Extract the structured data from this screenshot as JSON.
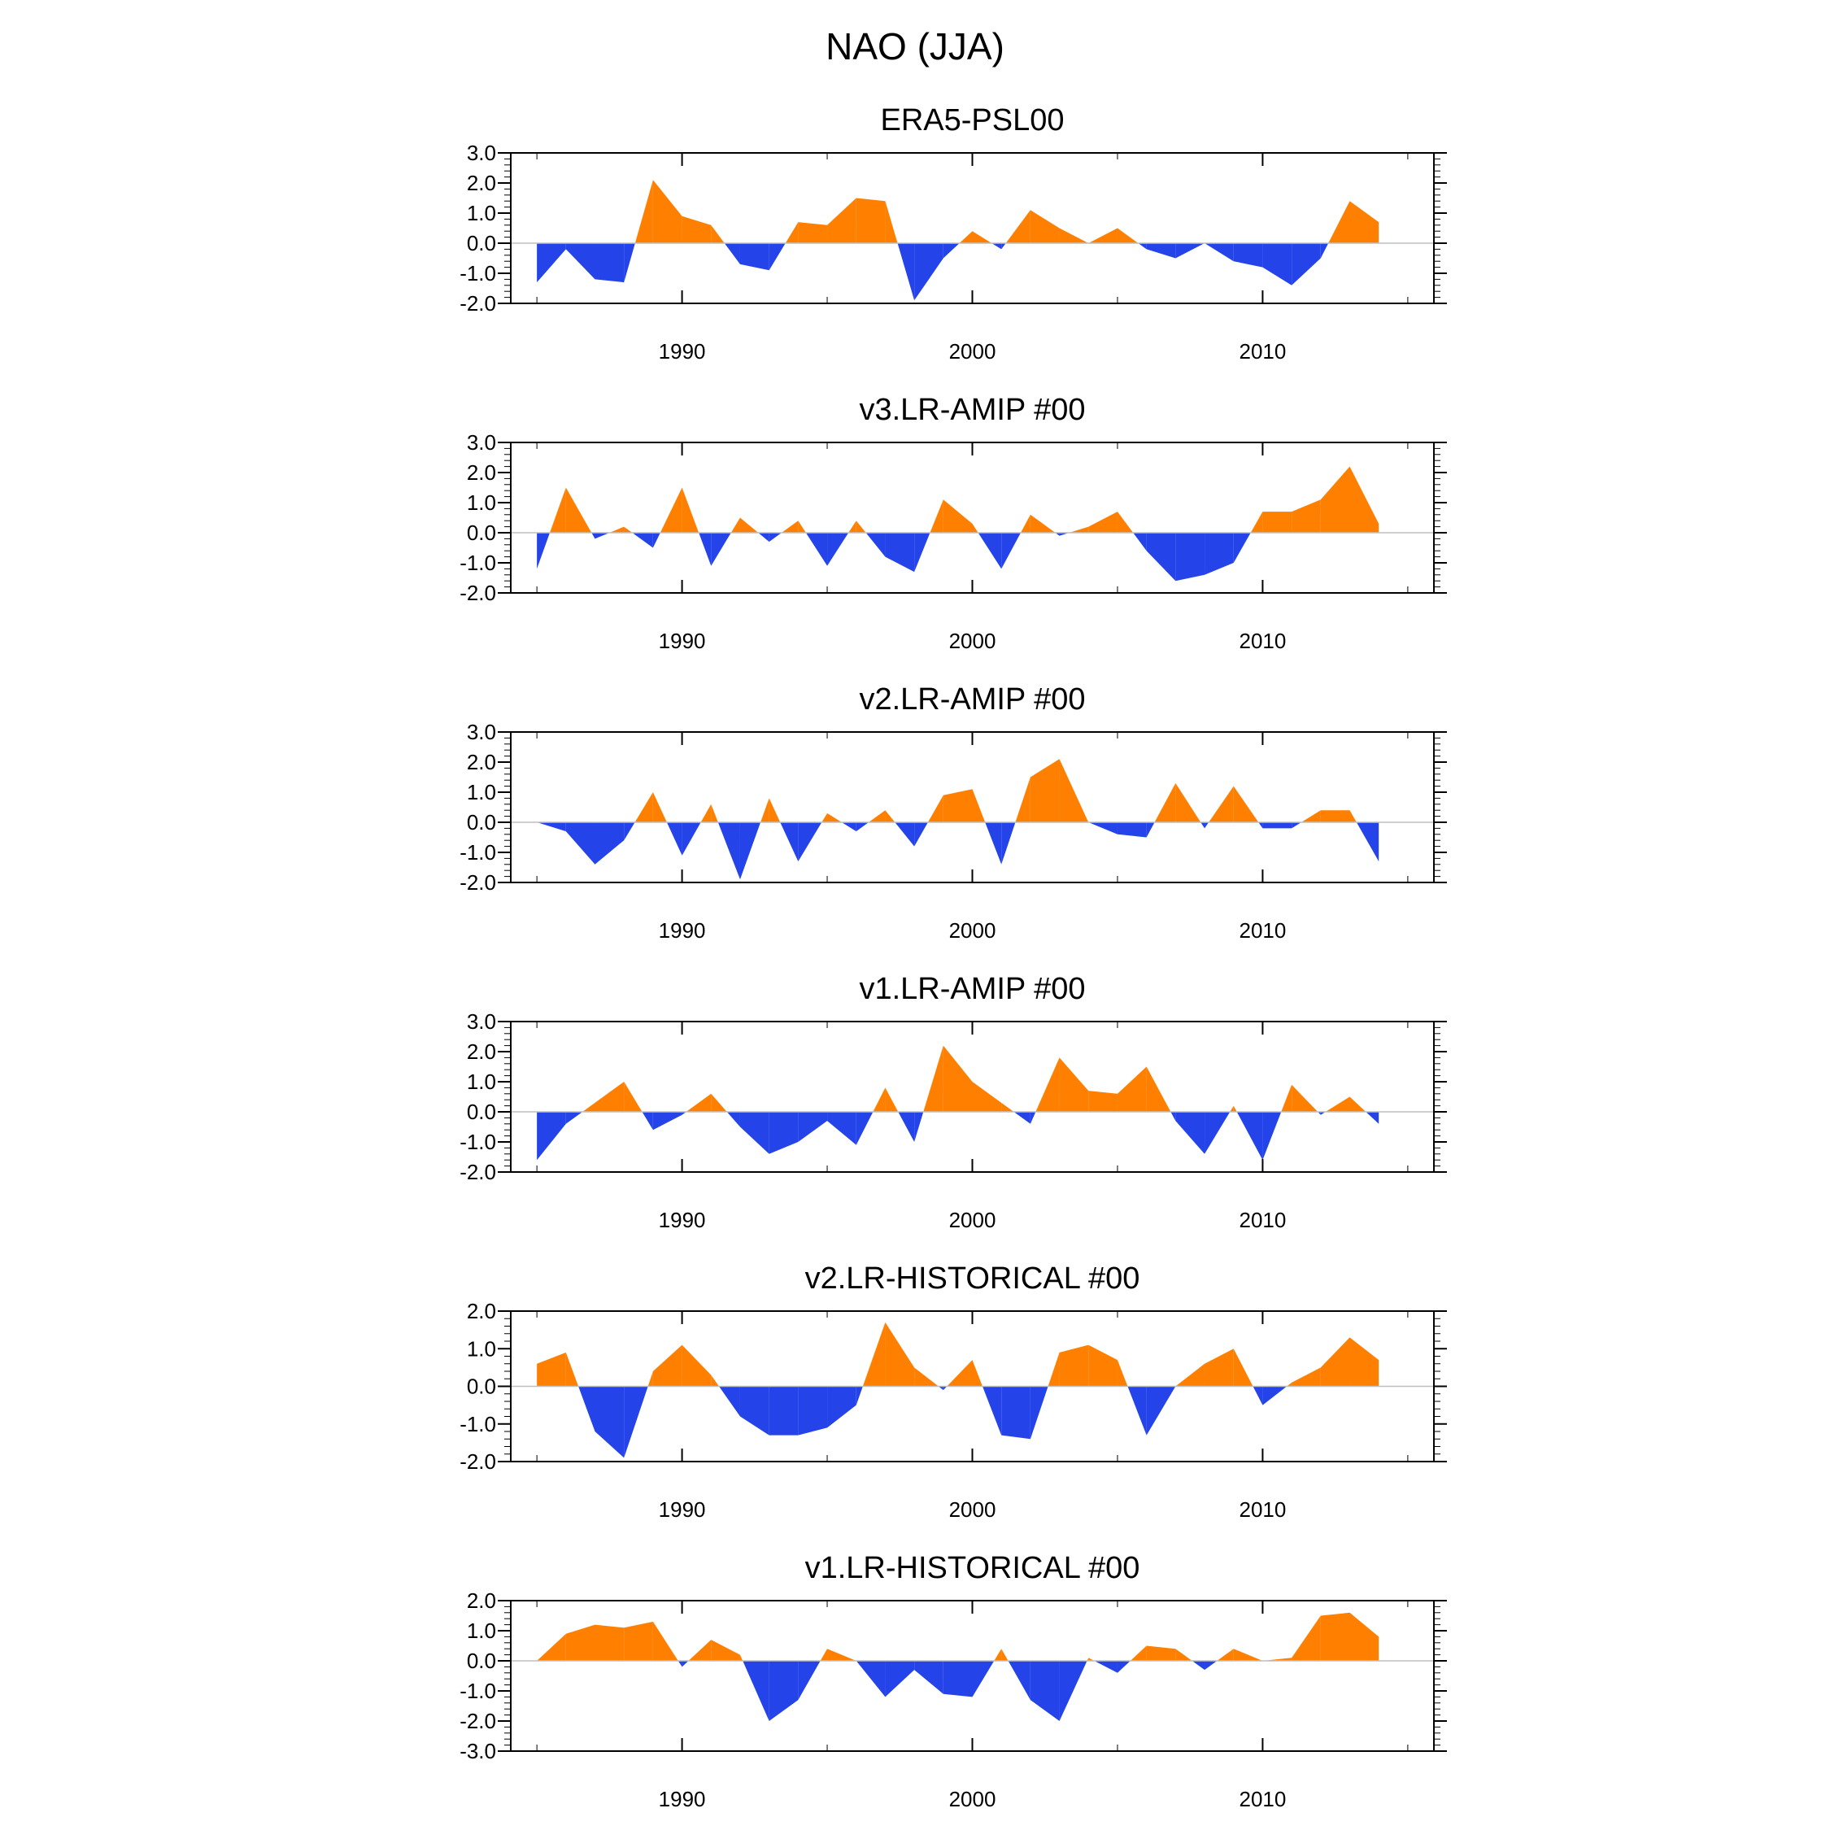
{
  "figure_title": "NAO (JJA)",
  "colors": {
    "positive": "#ff8000",
    "negative": "#2444ea",
    "axis": "#000000",
    "zero_line": "#bfbfbf"
  },
  "chart_data": [
    {
      "type": "area",
      "title": "ERA5-PSL00",
      "x": [
        1985,
        1986,
        1987,
        1988,
        1989,
        1990,
        1991,
        1992,
        1993,
        1994,
        1995,
        1996,
        1997,
        1998,
        1999,
        2000,
        2001,
        2002,
        2003,
        2004,
        2005,
        2006,
        2007,
        2008,
        2009,
        2010,
        2011,
        2012,
        2013,
        2014
      ],
      "values": [
        -1.3,
        -0.2,
        -1.2,
        -1.3,
        2.1,
        0.9,
        0.6,
        -0.7,
        -0.9,
        0.7,
        0.6,
        1.5,
        1.4,
        -1.9,
        -0.5,
        0.4,
        -0.2,
        1.1,
        0.5,
        0.0,
        0.5,
        -0.2,
        -0.5,
        0.0,
        -0.6,
        -0.8,
        -1.4,
        -0.5,
        1.4,
        0.7
      ],
      "xlim": [
        1984.1,
        2015.9
      ],
      "ylim": [
        -2.0,
        3.0
      ],
      "xticks": [
        "1990",
        "2000",
        "2010"
      ],
      "yticks": [
        "3.0",
        "2.0",
        "1.0",
        "0.0",
        "-1.0",
        "-2.0"
      ]
    },
    {
      "type": "area",
      "title": "v3.LR-AMIP  #00",
      "x": [
        1985,
        1986,
        1987,
        1988,
        1989,
        1990,
        1991,
        1992,
        1993,
        1994,
        1995,
        1996,
        1997,
        1998,
        1999,
        2000,
        2001,
        2002,
        2003,
        2004,
        2005,
        2006,
        2007,
        2008,
        2009,
        2010,
        2011,
        2012,
        2013,
        2014
      ],
      "values": [
        -1.2,
        1.5,
        -0.2,
        0.2,
        -0.5,
        1.5,
        -1.1,
        0.5,
        -0.3,
        0.4,
        -1.1,
        0.4,
        -0.8,
        -1.3,
        1.1,
        0.3,
        -1.2,
        0.6,
        -0.1,
        0.2,
        0.7,
        -0.6,
        -1.6,
        -1.4,
        -1.0,
        0.7,
        0.7,
        1.1,
        2.2,
        0.3
      ],
      "xlim": [
        1984.1,
        2015.9
      ],
      "ylim": [
        -2.0,
        3.0
      ],
      "xticks": [
        "1990",
        "2000",
        "2010"
      ],
      "yticks": [
        "3.0",
        "2.0",
        "1.0",
        "0.0",
        "-1.0",
        "-2.0"
      ]
    },
    {
      "type": "area",
      "title": "v2.LR-AMIP  #00",
      "x": [
        1985,
        1986,
        1987,
        1988,
        1989,
        1990,
        1991,
        1992,
        1993,
        1994,
        1995,
        1996,
        1997,
        1998,
        1999,
        2000,
        2001,
        2002,
        2003,
        2004,
        2005,
        2006,
        2007,
        2008,
        2009,
        2010,
        2011,
        2012,
        2013,
        2014
      ],
      "values": [
        0.0,
        -0.3,
        -1.4,
        -0.6,
        1.0,
        -1.1,
        0.6,
        -1.9,
        0.8,
        -1.3,
        0.3,
        -0.3,
        0.4,
        -0.8,
        0.9,
        1.1,
        -1.4,
        1.5,
        2.1,
        0.0,
        -0.4,
        -0.5,
        1.3,
        -0.2,
        1.2,
        -0.2,
        -0.2,
        0.4,
        0.4,
        -1.3
      ],
      "xlim": [
        1984.1,
        2015.9
      ],
      "ylim": [
        -2.0,
        3.0
      ],
      "xticks": [
        "1990",
        "2000",
        "2010"
      ],
      "yticks": [
        "3.0",
        "2.0",
        "1.0",
        "0.0",
        "-1.0",
        "-2.0"
      ]
    },
    {
      "type": "area",
      "title": "v1.LR-AMIP  #00",
      "x": [
        1985,
        1986,
        1987,
        1988,
        1989,
        1990,
        1991,
        1992,
        1993,
        1994,
        1995,
        1996,
        1997,
        1998,
        1999,
        2000,
        2001,
        2002,
        2003,
        2004,
        2005,
        2006,
        2007,
        2008,
        2009,
        2010,
        2011,
        2012,
        2013,
        2014
      ],
      "values": [
        -1.6,
        -0.4,
        0.3,
        1.0,
        -0.6,
        -0.1,
        0.6,
        -0.5,
        -1.4,
        -1.0,
        -0.3,
        -1.1,
        0.8,
        -1.0,
        2.2,
        1.0,
        0.3,
        -0.4,
        1.8,
        0.7,
        0.6,
        1.5,
        -0.3,
        -1.4,
        0.2,
        -1.6,
        0.9,
        -0.1,
        0.5,
        -0.4
      ],
      "xlim": [
        1984.1,
        2015.9
      ],
      "ylim": [
        -2.0,
        3.0
      ],
      "xticks": [
        "1990",
        "2000",
        "2010"
      ],
      "yticks": [
        "3.0",
        "2.0",
        "1.0",
        "0.0",
        "-1.0",
        "-2.0"
      ]
    },
    {
      "type": "area",
      "title": "v2.LR-HISTORICAL  #00",
      "x": [
        1985,
        1986,
        1987,
        1988,
        1989,
        1990,
        1991,
        1992,
        1993,
        1994,
        1995,
        1996,
        1997,
        1998,
        1999,
        2000,
        2001,
        2002,
        2003,
        2004,
        2005,
        2006,
        2007,
        2008,
        2009,
        2010,
        2011,
        2012,
        2013,
        2014
      ],
      "values": [
        0.6,
        0.9,
        -1.2,
        -1.9,
        0.4,
        1.1,
        0.3,
        -0.8,
        -1.3,
        -1.3,
        -1.1,
        -0.5,
        1.7,
        0.5,
        -0.1,
        0.7,
        -1.3,
        -1.4,
        0.9,
        1.1,
        0.7,
        -1.3,
        0.0,
        0.6,
        1.0,
        -0.5,
        0.1,
        0.5,
        1.3,
        0.7
      ],
      "xlim": [
        1984.1,
        2015.9
      ],
      "ylim": [
        -2.0,
        2.0
      ],
      "xticks": [
        "1990",
        "2000",
        "2010"
      ],
      "yticks": [
        "2.0",
        "1.0",
        "0.0",
        "-1.0",
        "-2.0"
      ]
    },
    {
      "type": "area",
      "title": "v1.LR-HISTORICAL  #00",
      "x": [
        1985,
        1986,
        1987,
        1988,
        1989,
        1990,
        1991,
        1992,
        1993,
        1994,
        1995,
        1996,
        1997,
        1998,
        1999,
        2000,
        2001,
        2002,
        2003,
        2004,
        2005,
        2006,
        2007,
        2008,
        2009,
        2010,
        2011,
        2012,
        2013,
        2014
      ],
      "values": [
        0.0,
        0.9,
        1.2,
        1.1,
        1.3,
        -0.2,
        0.7,
        0.2,
        -2.0,
        -1.3,
        0.4,
        0.0,
        -1.2,
        -0.3,
        -1.1,
        -1.2,
        0.4,
        -1.3,
        -2.0,
        0.1,
        -0.4,
        0.5,
        0.4,
        -0.3,
        0.4,
        0.0,
        0.1,
        1.5,
        1.6,
        0.8
      ],
      "xlim": [
        1984.1,
        2015.9
      ],
      "ylim": [
        -3.0,
        2.0
      ],
      "xticks": [
        "1990",
        "2000",
        "2010"
      ],
      "yticks": [
        "2.0",
        "1.0",
        "0.0",
        "-1.0",
        "-2.0",
        "-3.0"
      ]
    }
  ]
}
